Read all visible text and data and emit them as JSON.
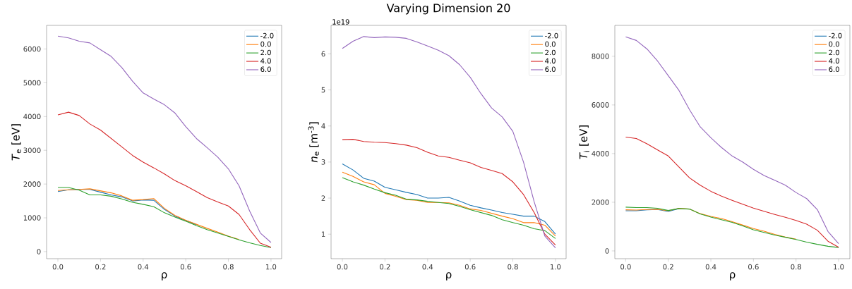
{
  "chart_data": [
    {
      "type": "line",
      "xlabel": "ρ",
      "ylabel": "*T*$_{e}$ [eV]",
      "legend": "top right",
      "x": [
        0,
        0.05,
        0.1,
        0.15,
        0.2,
        0.25,
        0.3,
        0.35,
        0.4,
        0.45,
        0.5,
        0.55,
        0.6,
        0.65,
        0.7,
        0.75,
        0.8,
        0.85,
        0.9,
        0.95,
        1.0
      ],
      "xlim": [
        -0.053,
        1.05
      ],
      "ylim": [
        -210,
        6700
      ],
      "xticks": [
        {
          "value": 0,
          "label": "0.0"
        },
        {
          "value": 0.2,
          "label": "0.2"
        },
        {
          "value": 0.4,
          "label": "0.4"
        },
        {
          "value": 0.6,
          "label": "0.6"
        },
        {
          "value": 0.8,
          "label": "0.8"
        },
        {
          "value": 1.0,
          "label": "1.0"
        }
      ],
      "yticks": [
        0,
        1000,
        2000,
        3000,
        4000,
        5000,
        6000
      ],
      "series": [
        {
          "name": "-2.0",
          "color": "#1f77b4",
          "values": [
            1780,
            1830,
            1840,
            1840,
            1760,
            1680,
            1620,
            1500,
            1530,
            1520,
            1250,
            1050,
            920,
            800,
            null,
            null,
            null,
            null,
            null,
            null,
            null
          ]
        },
        {
          "name": "0.0",
          "color": "#ff7f0e",
          "values": [
            1810,
            1830,
            1840,
            1860,
            1800,
            1740,
            1650,
            1520,
            1540,
            1570,
            1280,
            1070,
            930,
            810,
            690,
            580,
            460,
            360,
            null,
            null,
            null
          ]
        },
        {
          "name": "2.0",
          "color": "#2ca02c",
          "values": [
            1900,
            1900,
            1820,
            1680,
            1680,
            1640,
            1560,
            1460,
            1400,
            1330,
            1150,
            1020,
            900,
            770,
            650,
            550,
            450,
            350,
            260,
            180,
            120
          ]
        },
        {
          "name": "4.0",
          "color": "#d62728",
          "values": [
            4050,
            4130,
            4030,
            3780,
            3600,
            3350,
            3100,
            2850,
            2650,
            2480,
            2300,
            2100,
            1950,
            1780,
            1600,
            1470,
            1350,
            1100,
            650,
            250,
            130
          ]
        },
        {
          "name": "6.0",
          "color": "#9467bd",
          "values": [
            6380,
            6330,
            6230,
            6180,
            5980,
            5780,
            5450,
            5050,
            4700,
            4520,
            4350,
            4100,
            3700,
            3350,
            3080,
            2800,
            2450,
            1950,
            1200,
            550,
            270
          ]
        }
      ]
    },
    {
      "type": "line",
      "title": "Varying Dimension 20",
      "xlabel": "ρ",
      "ylabel": "*n*$_{e}$ [m$^{-3}$]",
      "legend": "top right",
      "annotations": [
        "1e19"
      ],
      "x": [
        0,
        0.05,
        0.1,
        0.15,
        0.2,
        0.25,
        0.3,
        0.35,
        0.4,
        0.45,
        0.5,
        0.55,
        0.6,
        0.65,
        0.7,
        0.75,
        0.8,
        0.85,
        0.9,
        0.95,
        1.0
      ],
      "xlim": [
        -0.053,
        1.05
      ],
      "ylim": [
        0.32,
        6.79
      ],
      "xticks": [
        {
          "value": 0,
          "label": "0.0"
        },
        {
          "value": 0.2,
          "label": "0.2"
        },
        {
          "value": 0.4,
          "label": "0.4"
        },
        {
          "value": 0.6,
          "label": "0.6"
        },
        {
          "value": 0.8,
          "label": "0.8"
        },
        {
          "value": 1.0,
          "label": "1.0"
        }
      ],
      "yticks": [
        1,
        2,
        3,
        4,
        5,
        6
      ],
      "series": [
        {
          "name": "-2.0",
          "color": "#1f77b4",
          "values": [
            2.95,
            2.78,
            2.55,
            2.47,
            2.3,
            2.23,
            2.16,
            2.1,
            2.0,
            2.0,
            2.02,
            1.92,
            1.8,
            1.73,
            1.67,
            1.6,
            1.55,
            1.5,
            1.5,
            1.35,
            1.0
          ]
        },
        {
          "name": "0.0",
          "color": "#ff7f0e",
          "values": [
            2.72,
            2.6,
            2.45,
            2.37,
            2.13,
            2.05,
            1.96,
            1.94,
            1.88,
            1.88,
            1.87,
            1.8,
            1.7,
            1.66,
            1.58,
            1.5,
            1.43,
            1.32,
            1.32,
            1.25,
            0.95
          ]
        },
        {
          "name": "2.0",
          "color": "#2ca02c",
          "values": [
            2.57,
            2.45,
            2.36,
            2.25,
            2.15,
            2.08,
            1.97,
            1.95,
            1.91,
            1.88,
            1.85,
            1.77,
            1.68,
            1.6,
            1.52,
            1.4,
            1.32,
            1.25,
            1.15,
            1.1,
            0.88
          ]
        },
        {
          "name": "4.0",
          "color": "#d62728",
          "values": [
            3.62,
            3.63,
            3.57,
            3.55,
            3.54,
            3.51,
            3.47,
            3.4,
            3.27,
            3.17,
            3.13,
            3.05,
            2.98,
            2.85,
            2.77,
            2.68,
            2.45,
            2.1,
            1.6,
            1.0,
            0.7
          ]
        },
        {
          "name": "6.0",
          "color": "#9467bd",
          "values": [
            6.15,
            6.35,
            6.48,
            6.45,
            6.47,
            6.46,
            6.43,
            6.33,
            6.22,
            6.1,
            5.95,
            5.7,
            5.35,
            4.9,
            4.5,
            4.25,
            3.85,
            3.0,
            1.9,
            0.95,
            0.62
          ]
        }
      ]
    },
    {
      "type": "line",
      "xlabel": "ρ",
      "ylabel": "*T*$_{i}$ [eV]",
      "legend": "top right",
      "x": [
        0,
        0.05,
        0.1,
        0.15,
        0.2,
        0.25,
        0.3,
        0.35,
        0.4,
        0.45,
        0.5,
        0.55,
        0.6,
        0.65,
        0.7,
        0.75,
        0.8,
        0.85,
        0.9,
        0.95,
        1.0
      ],
      "xlim": [
        -0.051,
        1.053
      ],
      "ylim": [
        -320,
        9270
      ],
      "xticks": [
        {
          "value": 0,
          "label": "0.0"
        },
        {
          "value": 0.2,
          "label": "0.2"
        },
        {
          "value": 0.4,
          "label": "0.4"
        },
        {
          "value": 0.6,
          "label": "0.6"
        },
        {
          "value": 0.8,
          "label": "0.8"
        },
        {
          "value": 1.0,
          "label": "1.0"
        }
      ],
      "yticks": [
        0,
        2000,
        4000,
        6000,
        8000
      ],
      "series": [
        {
          "name": "-2.0",
          "color": "#1f77b4",
          "values": [
            1650,
            1650,
            1690,
            1700,
            1620,
            1740,
            null,
            null,
            null,
            null,
            null,
            null,
            null,
            null,
            null,
            null,
            null,
            null,
            null,
            null,
            null
          ]
        },
        {
          "name": "0.0",
          "color": "#ff7f0e",
          "values": [
            1690,
            1680,
            1700,
            1710,
            1650,
            1750,
            1720,
            1530,
            1420,
            1330,
            1200,
            1060,
            920,
            810,
            680,
            570,
            480,
            null,
            null,
            null,
            null
          ]
        },
        {
          "name": "2.0",
          "color": "#2ca02c",
          "values": [
            1800,
            1780,
            1780,
            1750,
            1660,
            1740,
            1720,
            1520,
            1390,
            1280,
            1170,
            1030,
            870,
            760,
            650,
            560,
            470,
            360,
            270,
            190,
            140
          ]
        },
        {
          "name": "4.0",
          "color": "#d62728",
          "values": [
            4680,
            4620,
            4400,
            4150,
            3900,
            3450,
            3000,
            2700,
            2450,
            2250,
            2080,
            1920,
            1760,
            1630,
            1500,
            1380,
            1250,
            1100,
            850,
            400,
            150
          ]
        },
        {
          "name": "6.0",
          "color": "#9467bd",
          "values": [
            8800,
            8650,
            8300,
            7800,
            7200,
            6600,
            5800,
            5100,
            4650,
            4250,
            3900,
            3650,
            3350,
            3100,
            2900,
            2700,
            2400,
            2150,
            1700,
            800,
            300
          ]
        }
      ]
    }
  ]
}
